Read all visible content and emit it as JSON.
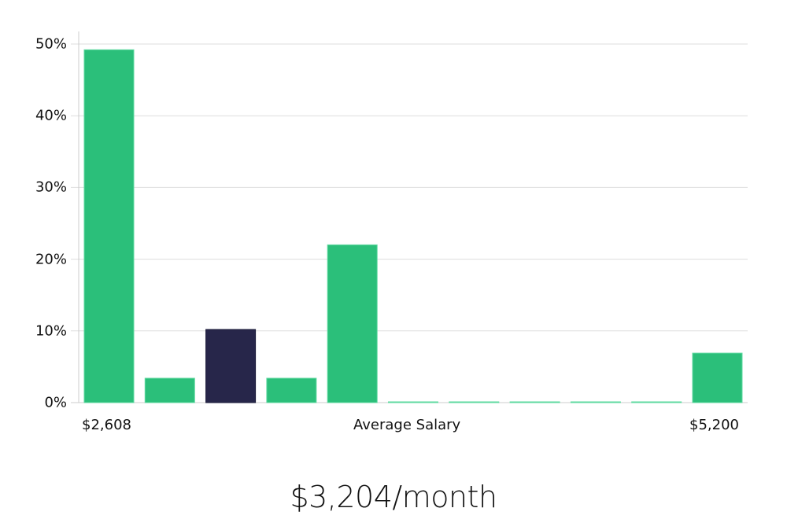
{
  "chart_data": {
    "type": "bar",
    "title": "",
    "xlabel": "Average Salary",
    "ylabel": "",
    "ylim": [
      0,
      50
    ],
    "yticks": [
      "0%",
      "10%",
      "20%",
      "30%",
      "40%",
      "50%"
    ],
    "x_edge_labels": {
      "left": "$2,608",
      "center": "Average Salary",
      "right": "$5,200"
    },
    "categories": [
      "bin1",
      "bin2",
      "bin3",
      "bin4",
      "bin5",
      "bin6",
      "bin7",
      "bin8",
      "bin9",
      "bin10",
      "bin11"
    ],
    "values": [
      49.2,
      3.4,
      10.2,
      3.4,
      22.0,
      0.1,
      0.1,
      0.1,
      0.1,
      0.1,
      6.9
    ],
    "highlight_index": 2,
    "colors": {
      "bar": "#2bbf7a",
      "highlight": "#27264a",
      "grid": "#dddddd",
      "axis": "#cccccc"
    },
    "grid": true,
    "legend": null
  },
  "footer": {
    "salary": "$3,204/month"
  }
}
